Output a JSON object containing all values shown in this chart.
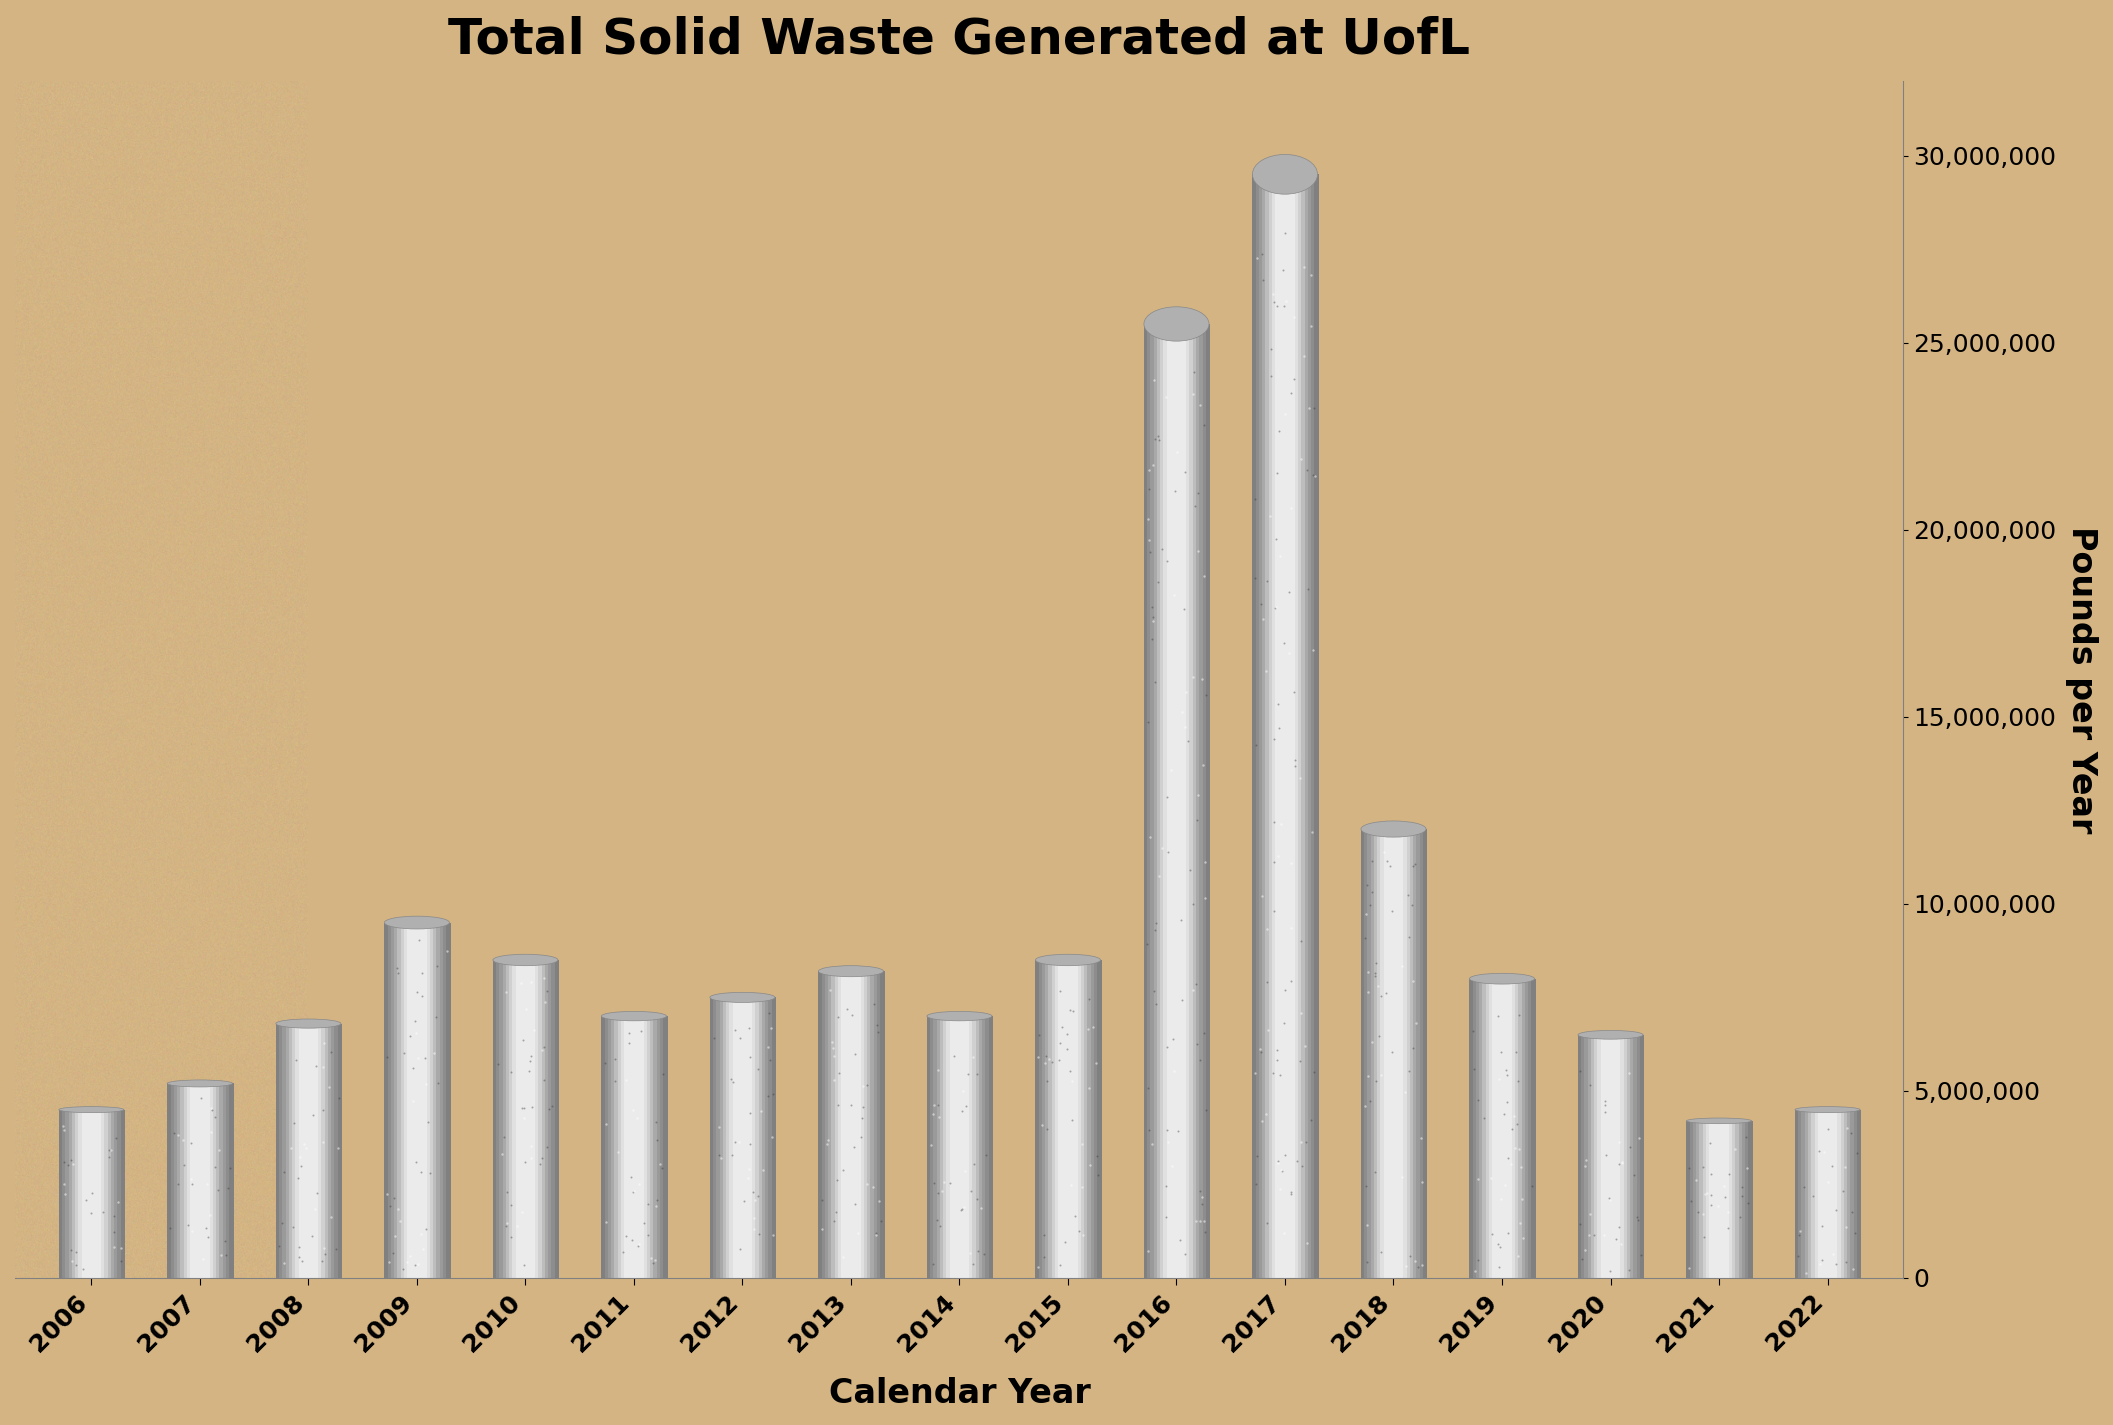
{
  "title": "Total Solid Waste Generated at UofL",
  "xlabel": "Calendar Year",
  "ylabel": "Pounds per Year",
  "years": [
    2006,
    2007,
    2008,
    2009,
    2010,
    2011,
    2012,
    2013,
    2014,
    2015,
    2016,
    2017,
    2018,
    2019,
    2020,
    2021,
    2022
  ],
  "values": [
    4500000,
    5200000,
    6800000,
    9500000,
    8500000,
    7000000,
    7500000,
    8200000,
    7000000,
    8500000,
    25500000,
    29500000,
    12000000,
    8000000,
    6500000,
    4200000,
    4500000
  ],
  "ylim": [
    0,
    32000000
  ],
  "yticks": [
    0,
    5000000,
    10000000,
    15000000,
    20000000,
    25000000,
    30000000
  ],
  "background_color": "#d4b483",
  "bar_color_light": "#d0d0d0",
  "bar_color_dark": "#808080",
  "title_fontsize": 36,
  "axis_label_fontsize": 24,
  "tick_fontsize": 18
}
